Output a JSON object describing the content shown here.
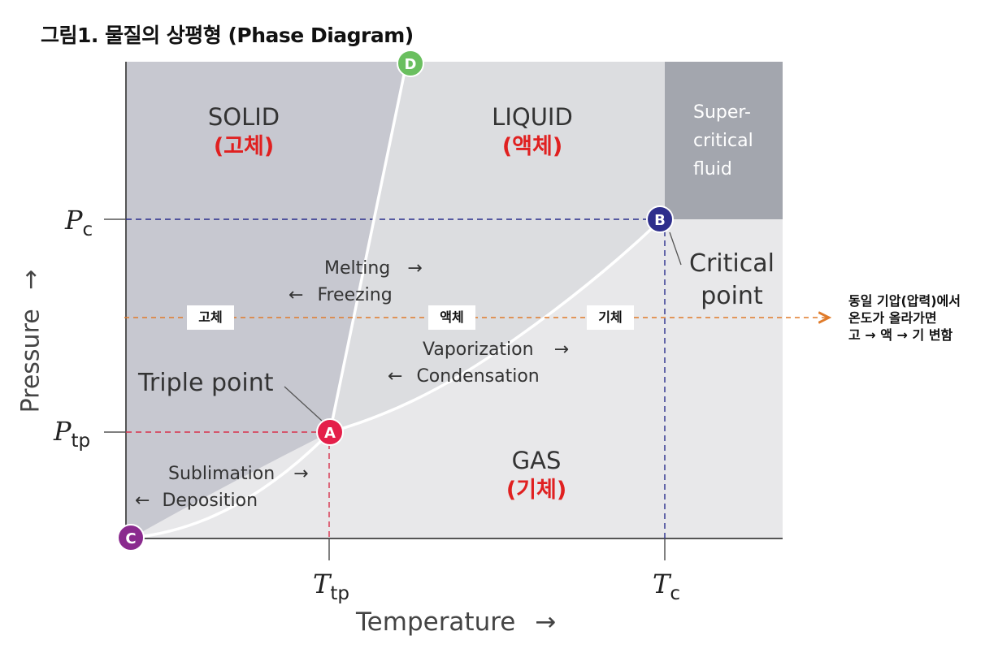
{
  "title": "그림1. 물질의 상평형 (Phase Diagram)",
  "regions": {
    "solid": {
      "label": "SOLID",
      "korean": "(고체)"
    },
    "liquid": {
      "label": "LIQUID",
      "korean": "(액체)"
    },
    "gas": {
      "label": "GAS",
      "korean": "(기체)"
    },
    "supercritical": {
      "line1": "Super-",
      "line2": "critical",
      "line3": "fluid"
    }
  },
  "transitions": {
    "melting": "Melting",
    "freezing": "Freezing",
    "vaporization": "Vaporization",
    "condensation": "Condensation",
    "sublimation": "Sublimation",
    "deposition": "Deposition"
  },
  "points": {
    "a": {
      "marker": "A",
      "label": "Triple point",
      "color": "#e41f4a"
    },
    "b": {
      "marker": "B",
      "label_line1": "Critical",
      "label_line2": "point",
      "color": "#2e2e8c"
    },
    "c": {
      "marker": "C",
      "color": "#8a2a8e"
    },
    "d": {
      "marker": "D",
      "color": "#6abf5f"
    }
  },
  "axes": {
    "x_title": "Temperature",
    "y_title": "Pressure",
    "t_tp": {
      "var": "T",
      "sub": "tp"
    },
    "t_c": {
      "var": "T",
      "sub": "c"
    },
    "p_c": {
      "var": "P",
      "sub": "c"
    },
    "p_tp": {
      "var": "P",
      "sub": "tp"
    }
  },
  "arrows": {
    "right": "→",
    "left": "←",
    "up": "↑"
  },
  "isobar": {
    "chip_solid": "고체",
    "chip_liquid": "액체",
    "chip_gas": "기체",
    "note_line1": "동일 기압(압력)에서",
    "note_line2": "온도가 올라가면",
    "note_line3": "고 → 액 → 기 변함",
    "color": "#e07b2a"
  },
  "colors": {
    "solid_region": "#c7c8d0",
    "liquid_region": "#dcdde0",
    "gas_region": "#e8e8ea",
    "supercritical_region": "#a3a6ae",
    "guide_blue": "#2a2e8c",
    "guide_red": "#d8304a"
  }
}
